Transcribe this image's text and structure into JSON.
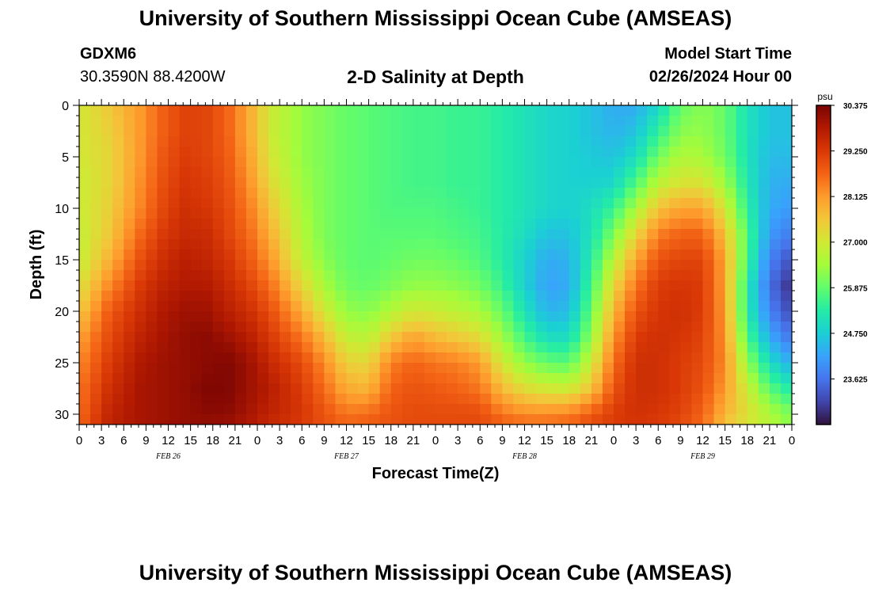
{
  "header": {
    "title": "University of Southern Mississippi Ocean Cube (AMSEAS)",
    "station_id": "GDXM6",
    "coordinates": "30.3590N  88.4200W",
    "chart_title": "2-D Salinity at Depth",
    "model_start_label": "Model Start Time",
    "model_start_value": "02/26/2024 Hour 00"
  },
  "footer": {
    "title": "University of Southern Mississippi Ocean Cube (AMSEAS)"
  },
  "colors": {
    "background": "#ffffff",
    "axis": "#000000",
    "colormap": [
      "#30123b",
      "#4145ab",
      "#4675ed",
      "#39a2fc",
      "#1bcfd4",
      "#24eca6",
      "#61fc6c",
      "#a4fc3b",
      "#d1e834",
      "#f3c63a",
      "#fe9b2d",
      "#f36315",
      "#d93806",
      "#b11901",
      "#7a0403"
    ]
  },
  "chart_data": {
    "type": "heatmap",
    "title": "2-D Salinity at Depth",
    "xlabel": "Forecast Time(Z)",
    "ylabel": "Depth (ft)",
    "x_tick_labels": [
      "0",
      "3",
      "6",
      "9",
      "12",
      "15",
      "18",
      "21",
      "0",
      "3",
      "6",
      "9",
      "12",
      "15",
      "18",
      "21",
      "0",
      "3",
      "6",
      "9",
      "12",
      "15",
      "18",
      "21",
      "0",
      "3",
      "6",
      "9",
      "12",
      "15",
      "18",
      "21",
      "0"
    ],
    "x_hours": [
      0,
      96
    ],
    "day_labels": [
      {
        "label": "FEB 26",
        "hour": 12
      },
      {
        "label": "FEB 27",
        "hour": 36
      },
      {
        "label": "FEB 28",
        "hour": 60
      },
      {
        "label": "FEB 29",
        "hour": 84
      }
    ],
    "y_ticks": [
      0,
      5,
      10,
      15,
      20,
      25,
      30
    ],
    "ylim": [
      0,
      31
    ],
    "y_inverted": true,
    "colorbar": {
      "unit": "psu",
      "range": [
        22.5,
        30.375
      ],
      "tick_values": [
        30.375,
        29.25,
        28.125,
        27.0,
        25.875,
        24.75,
        23.625
      ],
      "tick_labels": [
        "30.375",
        "29.250",
        "28.125",
        "27.000",
        "25.875",
        "24.750",
        "23.625"
      ]
    },
    "field_times": [
      0,
      4,
      8,
      11,
      14,
      17,
      20,
      23,
      26,
      30,
      33,
      36,
      39,
      42,
      45,
      48,
      51,
      54,
      57,
      60,
      63,
      66,
      69,
      72,
      75,
      78,
      81,
      84,
      87,
      90,
      93,
      96
    ],
    "field_depths": [
      0,
      2.5,
      5,
      7.5,
      10,
      12.5,
      15,
      17.5,
      20,
      22.5,
      25,
      27.5,
      30,
      31
    ],
    "salinity_psu": [
      [
        27.0,
        27.0,
        27.0,
        26.9,
        26.9,
        26.8,
        26.8,
        27.1,
        27.5,
        28.0,
        28.3,
        28.5,
        28.6,
        28.7
      ],
      [
        27.5,
        27.4,
        27.3,
        27.3,
        27.4,
        27.5,
        27.8,
        28.3,
        28.8,
        29.0,
        29.2,
        29.4,
        29.6,
        29.6
      ],
      [
        28.1,
        28.1,
        28.1,
        28.2,
        28.3,
        28.6,
        28.9,
        29.2,
        29.4,
        29.6,
        29.8,
        29.9,
        29.9,
        29.9
      ],
      [
        28.7,
        28.7,
        28.8,
        28.9,
        29.0,
        29.2,
        29.4,
        29.6,
        29.8,
        29.9,
        30.0,
        30.0,
        30.0,
        30.0
      ],
      [
        29.1,
        29.1,
        29.2,
        29.3,
        29.4,
        29.5,
        29.7,
        29.8,
        30.0,
        30.1,
        30.1,
        30.1,
        30.1,
        30.1
      ],
      [
        29.1,
        29.1,
        29.1,
        29.2,
        29.3,
        29.5,
        29.6,
        29.8,
        30.0,
        30.2,
        30.2,
        30.3,
        30.2,
        30.1
      ],
      [
        28.7,
        28.7,
        28.8,
        28.9,
        29.0,
        29.1,
        29.3,
        29.5,
        29.7,
        30.0,
        30.3,
        30.3,
        30.2,
        30.0
      ],
      [
        27.9,
        27.9,
        28.0,
        28.2,
        28.4,
        28.6,
        28.8,
        29.1,
        29.4,
        29.7,
        30.0,
        30.0,
        29.9,
        29.8
      ],
      [
        26.9,
        26.9,
        27.0,
        27.2,
        27.5,
        27.8,
        28.1,
        28.5,
        28.9,
        29.2,
        29.5,
        29.7,
        29.6,
        29.5
      ],
      [
        26.3,
        26.3,
        26.3,
        26.4,
        26.5,
        26.6,
        26.8,
        27.3,
        27.9,
        28.5,
        29.0,
        29.2,
        29.3,
        29.2
      ],
      [
        26.1,
        26.1,
        26.1,
        26.1,
        26.1,
        26.1,
        26.2,
        26.5,
        27.0,
        27.7,
        28.3,
        28.6,
        28.9,
        28.9
      ],
      [
        25.9,
        25.9,
        25.9,
        25.9,
        25.9,
        25.9,
        25.9,
        26.0,
        26.3,
        26.8,
        27.4,
        27.9,
        28.5,
        28.7
      ],
      [
        25.8,
        25.8,
        25.8,
        25.8,
        25.8,
        25.8,
        25.8,
        25.9,
        26.2,
        26.7,
        27.3,
        27.8,
        28.6,
        28.8
      ],
      [
        25.7,
        25.7,
        25.7,
        25.7,
        25.7,
        25.8,
        25.9,
        26.1,
        26.6,
        27.5,
        28.4,
        28.7,
        28.9,
        28.9
      ],
      [
        25.6,
        25.6,
        25.6,
        25.6,
        25.7,
        25.8,
        26.0,
        26.3,
        27.0,
        28.0,
        28.7,
        28.9,
        29.0,
        29.0
      ],
      [
        25.6,
        25.6,
        25.6,
        25.6,
        25.7,
        25.8,
        26.0,
        26.3,
        26.9,
        27.7,
        28.5,
        28.8,
        29.0,
        29.0
      ],
      [
        25.5,
        25.5,
        25.5,
        25.5,
        25.6,
        25.7,
        25.9,
        26.2,
        26.7,
        27.5,
        28.4,
        28.7,
        29.0,
        29.0
      ],
      [
        25.5,
        25.5,
        25.5,
        25.5,
        25.5,
        25.6,
        25.7,
        26.0,
        26.5,
        27.2,
        28.1,
        28.5,
        29.0,
        29.0
      ],
      [
        25.3,
        25.3,
        25.3,
        25.3,
        25.3,
        25.3,
        25.3,
        25.5,
        25.9,
        26.4,
        27.0,
        27.7,
        28.5,
        28.8
      ],
      [
        25.1,
        25.1,
        25.1,
        25.1,
        25.1,
        25.0,
        24.8,
        24.8,
        25.1,
        25.6,
        26.3,
        27.2,
        28.3,
        28.6
      ],
      [
        24.9,
        24.9,
        24.9,
        24.9,
        24.9,
        24.6,
        24.3,
        24.2,
        24.4,
        25.0,
        25.9,
        27.0,
        28.3,
        28.6
      ],
      [
        24.8,
        24.8,
        24.8,
        24.8,
        24.8,
        24.6,
        24.4,
        24.3,
        24.5,
        25.0,
        25.8,
        26.9,
        28.4,
        28.7
      ],
      [
        24.6,
        24.6,
        24.7,
        24.8,
        25.0,
        25.1,
        25.3,
        25.6,
        25.9,
        26.3,
        26.9,
        27.6,
        28.8,
        29.0
      ],
      [
        24.3,
        24.4,
        24.6,
        24.9,
        25.5,
        26.1,
        26.7,
        27.3,
        27.8,
        28.2,
        28.6,
        28.9,
        29.2,
        29.2
      ],
      [
        24.3,
        24.6,
        25.0,
        25.7,
        26.5,
        27.3,
        28.0,
        28.5,
        28.9,
        29.2,
        29.4,
        29.4,
        29.4,
        29.3
      ],
      [
        24.9,
        25.4,
        26.0,
        26.7,
        27.6,
        28.4,
        28.9,
        29.2,
        29.3,
        29.4,
        29.4,
        29.4,
        29.3,
        29.2
      ],
      [
        25.9,
        26.2,
        26.6,
        27.1,
        28.0,
        28.7,
        29.1,
        29.3,
        29.4,
        29.3,
        29.2,
        29.2,
        29.1,
        29.0
      ],
      [
        26.2,
        26.3,
        26.5,
        27.1,
        28.0,
        28.7,
        29.1,
        29.2,
        29.2,
        29.1,
        29.0,
        28.9,
        28.7,
        28.6
      ],
      [
        25.9,
        25.9,
        26.0,
        26.4,
        27.0,
        27.6,
        28.0,
        28.0,
        28.1,
        28.2,
        28.3,
        28.1,
        27.8,
        27.6
      ],
      [
        25.1,
        25.1,
        25.1,
        25.2,
        25.4,
        25.7,
        25.6,
        25.3,
        25.3,
        25.7,
        26.3,
        26.9,
        27.2,
        27.0
      ],
      [
        24.6,
        24.6,
        24.5,
        24.4,
        24.3,
        24.1,
        23.8,
        23.6,
        23.8,
        24.3,
        25.0,
        25.8,
        26.6,
        26.6
      ],
      [
        24.6,
        24.6,
        24.5,
        24.3,
        24.1,
        23.7,
        23.2,
        22.8,
        23.1,
        23.6,
        24.3,
        25.2,
        26.1,
        26.2
      ]
    ]
  }
}
